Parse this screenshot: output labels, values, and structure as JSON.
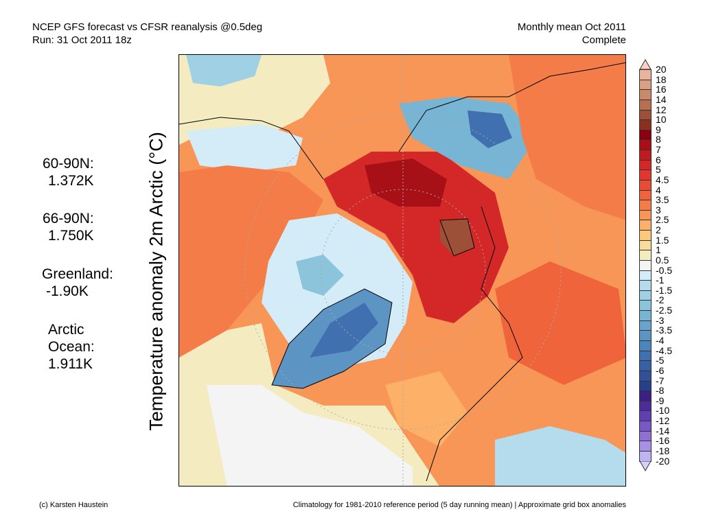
{
  "header": {
    "title_line1": "NCEP GFS forecast vs CFSR reanalysis @0.5deg",
    "title_line2": "Run: 31 Oct 2011 18z",
    "period_line1": "Monthly mean Oct 2011",
    "period_line2": "Complete"
  },
  "stats": [
    {
      "label": "60-90N:",
      "value": "1.372K"
    },
    {
      "label": "66-90N:",
      "value": "1.750K"
    },
    {
      "label": "Greenland:",
      "value": "-1.90K"
    },
    {
      "label": "Arctic",
      "label2": "Ocean:",
      "value": "1.911K"
    }
  ],
  "y_axis_label": "Temperature anomaly 2m Arctic (°C)",
  "colorbar": {
    "labels": [
      "20",
      "18",
      "16",
      "14",
      "12",
      "10",
      "9",
      "8",
      "7",
      "6",
      "5",
      "4.5",
      "4",
      "3.5",
      "3",
      "2.5",
      "2",
      "1.5",
      "1",
      "0.5",
      "-0.5",
      "-1",
      "-1.5",
      "-2",
      "-2.5",
      "-3",
      "-3.5",
      "-4",
      "-4.5",
      "-5",
      "-6",
      "-7",
      "-8",
      "-9",
      "-10",
      "-12",
      "-14",
      "-16",
      "-18",
      "-20"
    ],
    "colors": [
      "#f8cfc0",
      "#e8b49c",
      "#d9a084",
      "#c98a6c",
      "#b47050",
      "#9c5038",
      "#8a3020",
      "#8b0010",
      "#a81018",
      "#c01c20",
      "#d42828",
      "#e03830",
      "#e84c34",
      "#f0643c",
      "#f47c48",
      "#f89658",
      "#fcb068",
      "#fcc87c",
      "#f8dc9c",
      "#f4ecc0",
      "#f4f4f4",
      "#d4ecf8",
      "#b4dcec",
      "#a0d0e4",
      "#8cc4dc",
      "#78b4d4",
      "#6aa4cc",
      "#5c94c4",
      "#4c84bc",
      "#4070b0",
      "#3860a4",
      "#305098",
      "#28408a",
      "#3a2080",
      "#4c2c98",
      "#6040b0",
      "#7858c4",
      "#9070d4",
      "#a890e4",
      "#c0b4f0",
      "#d8d0f8"
    ]
  },
  "footer": {
    "credit": "(c) Karsten Haustein",
    "note": "Climatology for 1981-2010 reference period (5 day running mean) | Approximate grid box anomalies"
  }
}
